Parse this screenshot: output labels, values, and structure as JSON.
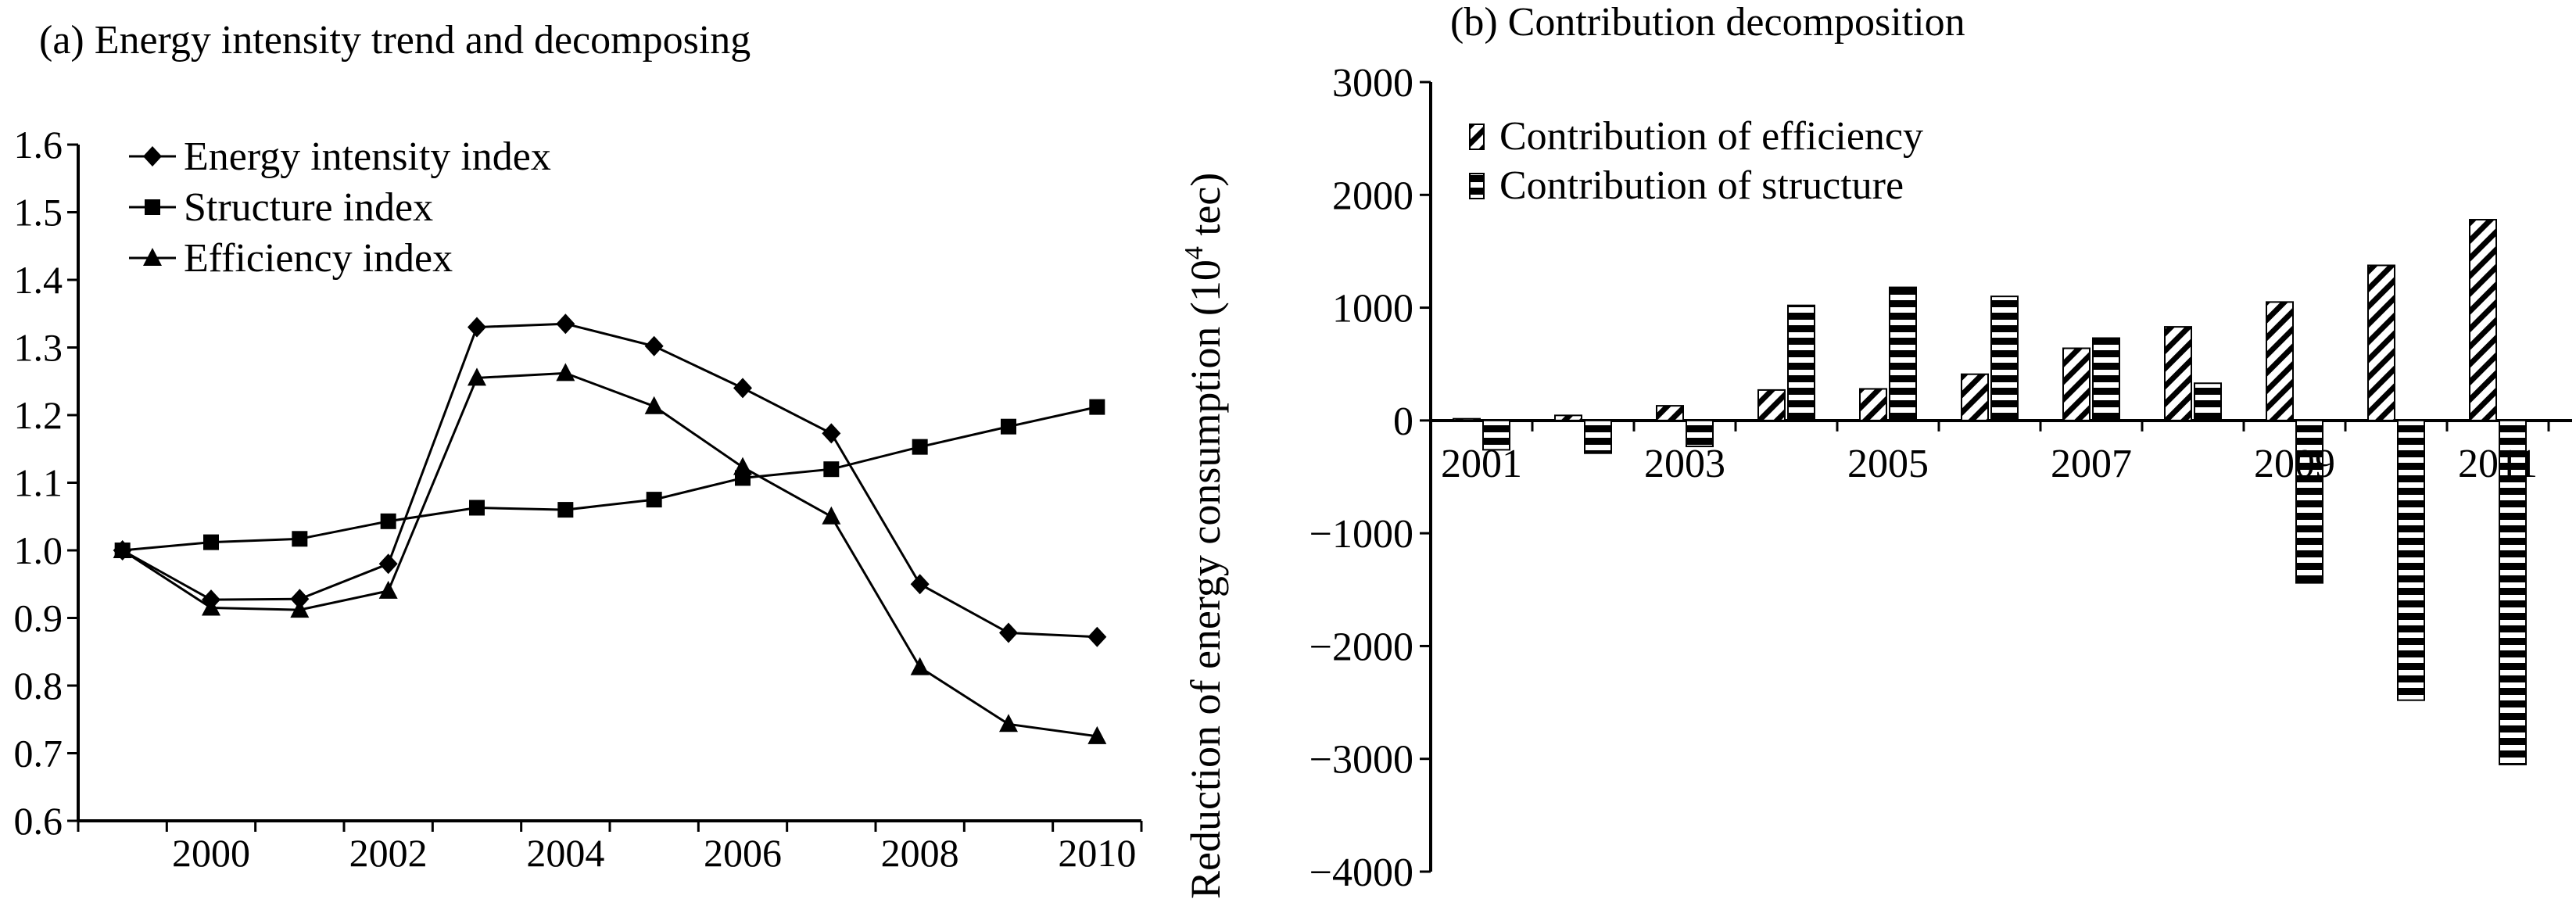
{
  "chart_data": [
    {
      "type": "line",
      "title": "(a) Energy intensity trend and decomposing",
      "xlabel": "",
      "ylabel": "",
      "x": [
        1999,
        2000,
        2001,
        2002,
        2003,
        2004,
        2005,
        2006,
        2007,
        2008,
        2009,
        2010
      ],
      "xticks": [
        "2000",
        "2002",
        "2004",
        "2006",
        "2008",
        "2010"
      ],
      "xtick_values": [
        2000,
        2002,
        2004,
        2006,
        2008,
        2010
      ],
      "ylim": [
        0.6,
        1.6
      ],
      "yticks": [
        "0.6",
        "0.7",
        "0.8",
        "0.9",
        "1.0",
        "1.1",
        "1.2",
        "1.3",
        "1.4",
        "1.5",
        "1.6"
      ],
      "ytick_values": [
        0.6,
        0.7,
        0.8,
        0.9,
        1.0,
        1.1,
        1.2,
        1.3,
        1.4,
        1.5,
        1.6
      ],
      "grid": false,
      "legend": "top-left",
      "series": [
        {
          "name": "Energy intensity index",
          "marker": "diamond",
          "values": [
            1.0,
            0.927,
            0.928,
            0.98,
            1.33,
            1.335,
            1.302,
            1.24,
            1.173,
            0.95,
            0.878,
            0.872
          ]
        },
        {
          "name": "Structure index",
          "marker": "square",
          "values": [
            1.0,
            1.012,
            1.017,
            1.043,
            1.063,
            1.06,
            1.075,
            1.107,
            1.12,
            1.153,
            1.183,
            1.212
          ]
        },
        {
          "name": "Efficiency index",
          "marker": "triangle",
          "values": [
            1.0,
            0.915,
            0.912,
            0.94,
            1.255,
            1.262,
            1.213,
            1.123,
            1.05,
            0.827,
            0.743,
            0.725
          ]
        }
      ]
    },
    {
      "type": "bar",
      "title": "(b) Contribution decomposition",
      "xlabel": "",
      "ylabel": "Reduction of energy consumption (10",
      "ylabel_sup": "4",
      "ylabel_end": " tec)",
      "categories": [
        "2001",
        "2002",
        "2003",
        "2004",
        "2005",
        "2006",
        "2007",
        "2008",
        "2009",
        "2010",
        "2011"
      ],
      "xtick_labels": [
        "2001",
        "2003",
        "2005",
        "2007",
        "2009",
        "2011"
      ],
      "ylim": [
        -4000,
        3000
      ],
      "yticks": [
        "3000",
        "2000",
        "1000",
        "0",
        "−1000",
        "−2000",
        "−3000",
        "−4000"
      ],
      "ytick_values": [
        3000,
        2000,
        1000,
        0,
        -1000,
        -2000,
        -3000,
        -4000
      ],
      "grid": false,
      "legend": "top-left",
      "series": [
        {
          "name": "Contribution of efficiency",
          "pattern": "diagonal",
          "values": [
            15,
            45,
            130,
            270,
            280,
            410,
            640,
            830,
            1050,
            1375,
            1780
          ]
        },
        {
          "name": "Contribution of structure",
          "pattern": "horizontal",
          "values": [
            -260,
            -290,
            -230,
            1020,
            1180,
            1100,
            730,
            330,
            -1440,
            -2480,
            -3050
          ]
        }
      ]
    }
  ]
}
